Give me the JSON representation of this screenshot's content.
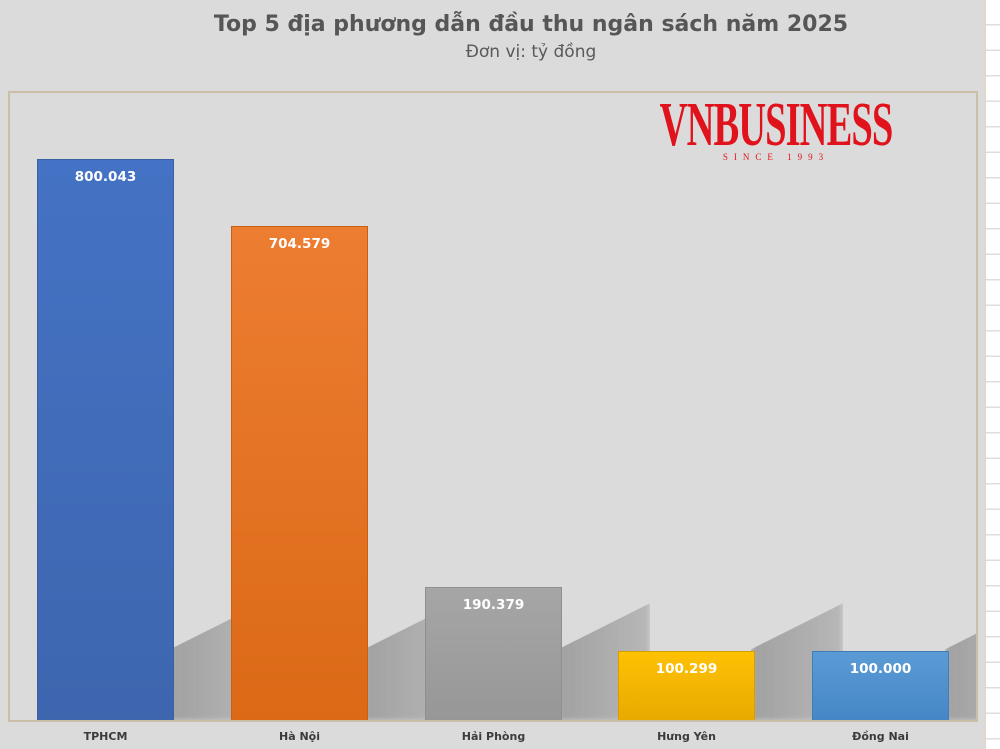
{
  "header": {
    "title": "Top 5 địa phương dẫn đầu thu ngân sách năm 2025",
    "subtitle": "Đơn vị: tỷ đồng"
  },
  "logo": {
    "text": "VNBUSINESS",
    "tagline": "SINCE 1993",
    "color": "#E0121C"
  },
  "chart_data": {
    "type": "bar",
    "title": "Top 5 địa phương dẫn đầu thu ngân sách năm 2025",
    "unit_label": "Đơn vị: tỷ đồng",
    "categories": [
      "TPHCM",
      "Hà Nội",
      "Hải Phòng",
      "Hưng Yên",
      "Đồng Nai"
    ],
    "values": [
      800043,
      704579,
      190379,
      100299,
      100000
    ],
    "value_labels": [
      "800.043",
      "704.579",
      "190.379",
      "100.299",
      "100.000"
    ],
    "bar_colors": [
      "#4472C4",
      "#ED7D31",
      "#A6A6A6",
      "#FFC103",
      "#5B9BD5"
    ],
    "bar_colors_dark": [
      "#3E66AF",
      "#DB6916",
      "#979797",
      "#E8AA00",
      "#4587C6"
    ],
    "bar_borders": [
      "#3A5FA3",
      "#C95F12",
      "#8F8F8F",
      "#D79E00",
      "#3F7DB8"
    ],
    "ylim": [
      0,
      800043
    ],
    "grid": false,
    "legend": false,
    "data_labels": "inside-end",
    "background": "#DBDBDB"
  }
}
